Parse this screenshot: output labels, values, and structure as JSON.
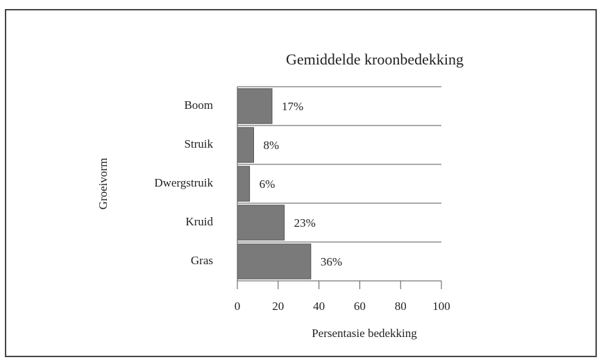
{
  "chart_data": {
    "type": "barh",
    "title": "Gemiddelde kroonbedekking",
    "categories": [
      "Boom",
      "Struik",
      "Dwergstruik",
      "Kruid",
      "Gras"
    ],
    "values": [
      17,
      8,
      6,
      23,
      36
    ],
    "value_labels": [
      "17%",
      "8%",
      "6%",
      "23%",
      "36%"
    ],
    "color": "#7a7a7a",
    "xlabel": "Persentasie bedekking",
    "ylabel": "Groeivorm",
    "xlim": [
      0,
      100
    ],
    "xticks": [
      0,
      20,
      40,
      60,
      80,
      100
    ]
  }
}
